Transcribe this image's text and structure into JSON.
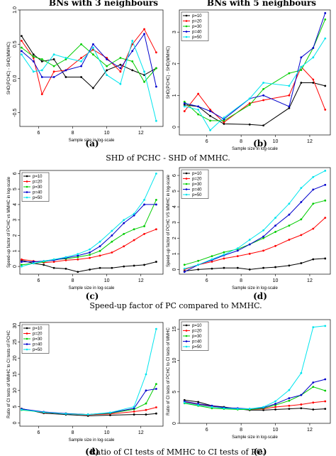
{
  "figure": {
    "col_titles": [
      "BNs with 3 neighbours",
      "BNs with 5 neighbours"
    ],
    "row_captions": [
      "SHD of PCHC - SHD of MMHC.",
      "Speed-up factor of PC compared to MMHC.",
      "Ratio of CI tests of MMHC to CI tests of PC."
    ]
  },
  "series_colors": [
    "#000000",
    "#ff0000",
    "#00cc00",
    "#0000cc",
    "#00e5ee"
  ],
  "chart_data": [
    {
      "panel": "a",
      "type": "line",
      "title": "",
      "xlabel": "Sample size in log-scale",
      "ylabel": "SHD(PCHC) - SHD(MMHC)",
      "xlim": [
        4.9,
        13.3
      ],
      "ylim": [
        -0.7,
        1.0
      ],
      "xticks": [
        "6",
        "8",
        "10",
        "12"
      ],
      "yticks": [
        "-0.5",
        "0.0",
        "0.5",
        "1.0"
      ],
      "legend": "none",
      "grid": false,
      "x": [
        5.0,
        5.7,
        6.2,
        6.9,
        7.6,
        8.5,
        9.2,
        10.0,
        10.8,
        11.5,
        12.2,
        12.9
      ],
      "series": [
        {
          "name": "p=10",
          "values": [
            0.62,
            0.35,
            0.25,
            0.28,
            0.02,
            0.02,
            -0.14,
            0.12,
            0.2,
            0.12,
            0.05,
            0.15
          ]
        },
        {
          "name": "p=20",
          "values": [
            0.55,
            0.3,
            -0.23,
            0.1,
            0.12,
            0.3,
            0.42,
            0.3,
            0.1,
            0.5,
            0.72,
            0.38
          ]
        },
        {
          "name": "p=30",
          "values": [
            0.45,
            0.32,
            0.28,
            0.18,
            0.28,
            0.5,
            0.35,
            0.18,
            0.3,
            0.25,
            -0.05,
            0.15
          ]
        },
        {
          "name": "p=40",
          "values": [
            0.4,
            0.25,
            0.02,
            0.02,
            0.12,
            0.18,
            0.5,
            0.28,
            0.15,
            0.4,
            0.65,
            -0.12
          ]
        },
        {
          "name": "p=50",
          "values": [
            0.35,
            0.1,
            0.12,
            0.35,
            0.3,
            0.25,
            0.45,
            0.05,
            -0.08,
            0.55,
            0.1,
            -0.62
          ]
        }
      ]
    },
    {
      "panel": "b",
      "type": "line",
      "title": "",
      "xlabel": "Sample size in log-scale",
      "ylabel": "SHD(PCHC) - SHD(MMHC)",
      "xlim": [
        4.4,
        13.2
      ],
      "ylim": [
        -0.25,
        3.7
      ],
      "xticks": [
        "6",
        "8",
        "10",
        "12"
      ],
      "yticks": [
        "0",
        "1",
        "2",
        "3"
      ],
      "legend": "top-left",
      "grid": false,
      "x": [
        4.7,
        5.5,
        6.2,
        7.0,
        8.5,
        9.3,
        10.8,
        11.5,
        12.2,
        12.9
      ],
      "series": [
        {
          "name": "p=10",
          "values": [
            0.7,
            0.65,
            0.35,
            0.1,
            0.08,
            0.05,
            0.6,
            1.4,
            1.4,
            1.3
          ]
        },
        {
          "name": "p=20",
          "values": [
            0.5,
            1.05,
            0.55,
            0.15,
            0.75,
            0.85,
            1.0,
            1.9,
            1.5,
            0.55
          ]
        },
        {
          "name": "p=30",
          "values": [
            0.8,
            0.4,
            0.2,
            0.2,
            0.7,
            1.2,
            1.7,
            1.8,
            2.5,
            3.4
          ]
        },
        {
          "name": "p=40",
          "values": [
            0.75,
            0.65,
            0.5,
            0.25,
            0.9,
            1.0,
            0.65,
            2.2,
            2.5,
            3.6
          ]
        },
        {
          "name": "p=50",
          "values": [
            0.65,
            0.55,
            -0.1,
            0.3,
            0.9,
            1.4,
            1.3,
            1.9,
            2.2,
            2.8
          ]
        }
      ]
    },
    {
      "panel": "c",
      "type": "line",
      "title": "",
      "xlabel": "Sample size in log-scale",
      "ylabel": "Speed-up factor of PCHC vs MMHC in log-scale",
      "xlim": [
        4.9,
        13.3
      ],
      "ylim": [
        -0.5,
        6.2
      ],
      "xticks": [
        "6",
        "8",
        "10",
        "12"
      ],
      "yticks": [
        "0",
        "1",
        "2",
        "3",
        "4",
        "5",
        "6"
      ],
      "legend": "top-left",
      "grid": false,
      "x": [
        5.0,
        5.7,
        6.3,
        6.9,
        7.6,
        8.3,
        9.0,
        9.6,
        10.3,
        11.0,
        11.6,
        12.2,
        12.9
      ],
      "series": [
        {
          "name": "p=10",
          "values": [
            0.4,
            0.2,
            0.1,
            -0.1,
            -0.15,
            -0.35,
            -0.2,
            -0.1,
            -0.1,
            0.0,
            0.05,
            0.1,
            0.3
          ]
        },
        {
          "name": "p=20",
          "values": [
            0.45,
            0.35,
            0.25,
            0.3,
            0.4,
            0.45,
            0.55,
            0.7,
            0.9,
            1.3,
            1.7,
            2.1,
            2.4
          ]
        },
        {
          "name": "p=30",
          "values": [
            0.1,
            0.2,
            0.3,
            0.45,
            0.5,
            0.6,
            0.75,
            1.0,
            1.6,
            2.1,
            2.4,
            2.6,
            4.3
          ]
        },
        {
          "name": "p=40",
          "values": [
            0.3,
            0.3,
            0.35,
            0.4,
            0.55,
            0.7,
            0.9,
            1.3,
            2.0,
            2.8,
            3.3,
            4.0,
            4.0
          ]
        },
        {
          "name": "p=50",
          "values": [
            0.0,
            0.2,
            0.35,
            0.45,
            0.6,
            0.8,
            1.1,
            1.6,
            2.3,
            3.0,
            3.4,
            4.3,
            6.0
          ]
        }
      ]
    },
    {
      "panel": "d",
      "type": "line",
      "title": "",
      "xlabel": "Sample size in log-scale",
      "ylabel": "Speed-up factor of PCHC VS MMHC in log-scale",
      "xlim": [
        4.4,
        13.2
      ],
      "ylim": [
        -0.3,
        6.5
      ],
      "xticks": [
        "6",
        "8",
        "10",
        "12"
      ],
      "yticks": [
        "0",
        "1",
        "2",
        "3",
        "4",
        "5",
        "6"
      ],
      "legend": "top-left",
      "grid": false,
      "x": [
        4.7,
        5.5,
        6.3,
        7.0,
        7.8,
        8.5,
        9.3,
        10.0,
        10.8,
        11.5,
        12.2,
        12.9
      ],
      "series": [
        {
          "name": "p=10",
          "values": [
            -0.1,
            0.0,
            0.05,
            0.1,
            0.1,
            0.0,
            0.1,
            0.15,
            0.25,
            0.4,
            0.65,
            0.7
          ]
        },
        {
          "name": "p=20",
          "values": [
            0.0,
            0.3,
            0.5,
            0.7,
            0.85,
            1.0,
            1.2,
            1.5,
            1.9,
            2.2,
            2.6,
            3.3
          ]
        },
        {
          "name": "p=30",
          "values": [
            0.3,
            0.55,
            0.85,
            1.1,
            1.3,
            1.6,
            2.0,
            2.4,
            2.8,
            3.2,
            4.2,
            4.4
          ]
        },
        {
          "name": "p=40",
          "values": [
            -0.15,
            0.3,
            0.6,
            0.9,
            1.2,
            1.6,
            2.1,
            2.8,
            3.5,
            4.3,
            5.1,
            5.4
          ]
        },
        {
          "name": "p=50",
          "values": [
            0.05,
            0.3,
            0.65,
            0.95,
            1.35,
            1.9,
            2.5,
            3.3,
            4.2,
            5.2,
            5.9,
            6.3
          ]
        }
      ]
    },
    {
      "panel": "e1",
      "type": "line",
      "title": "",
      "xlabel": "Sample size in log-scale",
      "ylabel": "Ratio of CI tests of MMHC to CI tests of PCHC",
      "xlim": [
        4.9,
        13.3
      ],
      "ylim": [
        -1,
        31
      ],
      "xticks": [
        "6",
        "8",
        "10",
        "12"
      ],
      "yticks": [
        "0",
        "5",
        "10",
        "15",
        "20",
        "25",
        "30"
      ],
      "legend": "top-left",
      "grid": false,
      "x": [
        5.0,
        6.3,
        7.6,
        8.9,
        10.2,
        11.6,
        12.3,
        12.9
      ],
      "series": [
        {
          "name": "p=10",
          "values": [
            4.4,
            3.0,
            2.6,
            2.2,
            2.4,
            2.6,
            2.6,
            2.9
          ]
        },
        {
          "name": "p=20",
          "values": [
            4.2,
            3.2,
            2.8,
            2.5,
            2.8,
            3.5,
            4.0,
            4.8
          ]
        },
        {
          "name": "p=30",
          "values": [
            4.0,
            3.3,
            2.9,
            2.6,
            3.0,
            4.2,
            6.0,
            12.0
          ]
        },
        {
          "name": "p=40",
          "values": [
            4.3,
            3.4,
            2.9,
            2.6,
            3.1,
            4.5,
            10.0,
            10.5
          ]
        },
        {
          "name": "p=50",
          "values": [
            4.1,
            3.3,
            2.8,
            2.6,
            3.2,
            5.0,
            15.0,
            29.0
          ]
        }
      ]
    },
    {
      "panel": "e2",
      "type": "line",
      "title": "",
      "xlabel": "Sample size in log-scale",
      "ylabel": "Ratio of CI tests of PCHC to CI tests of MMHC",
      "xlim": [
        4.4,
        13.2
      ],
      "ylim": [
        0,
        16.5
      ],
      "xticks": [
        "6",
        "8",
        "10",
        "12"
      ],
      "yticks": [
        "0",
        "5",
        "10",
        "15"
      ],
      "legend": "top-left",
      "grid": false,
      "x": [
        4.7,
        5.5,
        6.3,
        7.0,
        7.8,
        8.5,
        9.3,
        10.0,
        10.8,
        11.5,
        12.2,
        12.9
      ],
      "series": [
        {
          "name": "p=10",
          "values": [
            3.7,
            3.4,
            2.8,
            2.6,
            2.3,
            2.1,
            2.1,
            2.2,
            2.3,
            2.4,
            2.2,
            2.3
          ]
        },
        {
          "name": "p=20",
          "values": [
            3.4,
            3.0,
            2.7,
            2.5,
            2.3,
            2.2,
            2.3,
            2.6,
            2.8,
            3.0,
            3.3,
            3.5
          ]
        },
        {
          "name": "p=30",
          "values": [
            3.2,
            2.8,
            2.4,
            2.3,
            2.2,
            2.2,
            2.4,
            2.9,
            3.6,
            4.5,
            5.8,
            5.2
          ]
        },
        {
          "name": "p=40",
          "values": [
            3.5,
            3.1,
            2.8,
            2.5,
            2.4,
            2.3,
            2.5,
            3.1,
            4.0,
            4.5,
            6.5,
            7.0
          ]
        },
        {
          "name": "p=50",
          "values": [
            3.3,
            2.9,
            2.6,
            2.4,
            2.3,
            2.3,
            2.6,
            3.5,
            5.3,
            8.0,
            15.3,
            15.5
          ]
        }
      ]
    }
  ]
}
